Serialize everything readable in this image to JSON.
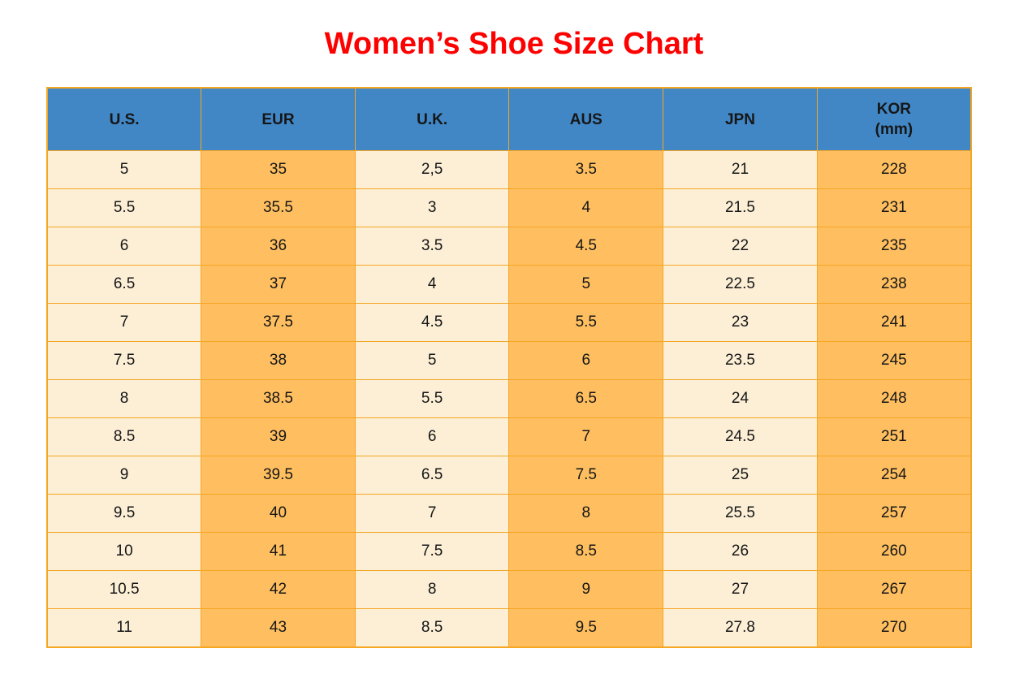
{
  "title": {
    "text": "Women’s Shoe Size Chart"
  },
  "colors": {
    "title": "#fe0000",
    "header_bg": "#4187c6",
    "odd_col_bg": "#fcefd6",
    "even_col_bg": "#ffbf60",
    "border": "#f5a623",
    "text": "#161616"
  },
  "chart_data": {
    "type": "table",
    "title": "Women’s Shoe Size Chart",
    "header": [
      {
        "label": "U.S.",
        "sublabel": ""
      },
      {
        "label": "EUR",
        "sublabel": ""
      },
      {
        "label": "U.K.",
        "sublabel": ""
      },
      {
        "label": "AUS",
        "sublabel": ""
      },
      {
        "label": "JPN",
        "sublabel": ""
      },
      {
        "label": "KOR",
        "sublabel": "(mm)"
      }
    ],
    "rows": [
      [
        "5",
        "35",
        "2,5",
        "3.5",
        "21",
        "228"
      ],
      [
        "5.5",
        "35.5",
        "3",
        "4",
        "21.5",
        "231"
      ],
      [
        "6",
        "36",
        "3.5",
        "4.5",
        "22",
        "235"
      ],
      [
        "6.5",
        "37",
        "4",
        "5",
        "22.5",
        "238"
      ],
      [
        "7",
        "37.5",
        "4.5",
        "5.5",
        "23",
        "241"
      ],
      [
        "7.5",
        "38",
        "5",
        "6",
        "23.5",
        "245"
      ],
      [
        "8",
        "38.5",
        "5.5",
        "6.5",
        "24",
        "248"
      ],
      [
        "8.5",
        "39",
        "6",
        "7",
        "24.5",
        "251"
      ],
      [
        "9",
        "39.5",
        "6.5",
        "7.5",
        "25",
        "254"
      ],
      [
        "9.5",
        "40",
        "7",
        "8",
        "25.5",
        "257"
      ],
      [
        "10",
        "41",
        "7.5",
        "8.5",
        "26",
        "260"
      ],
      [
        "10.5",
        "42",
        "8",
        "9",
        "27",
        "267"
      ],
      [
        "11",
        "43",
        "8.5",
        "9.5",
        "27.8",
        "270"
      ]
    ]
  }
}
